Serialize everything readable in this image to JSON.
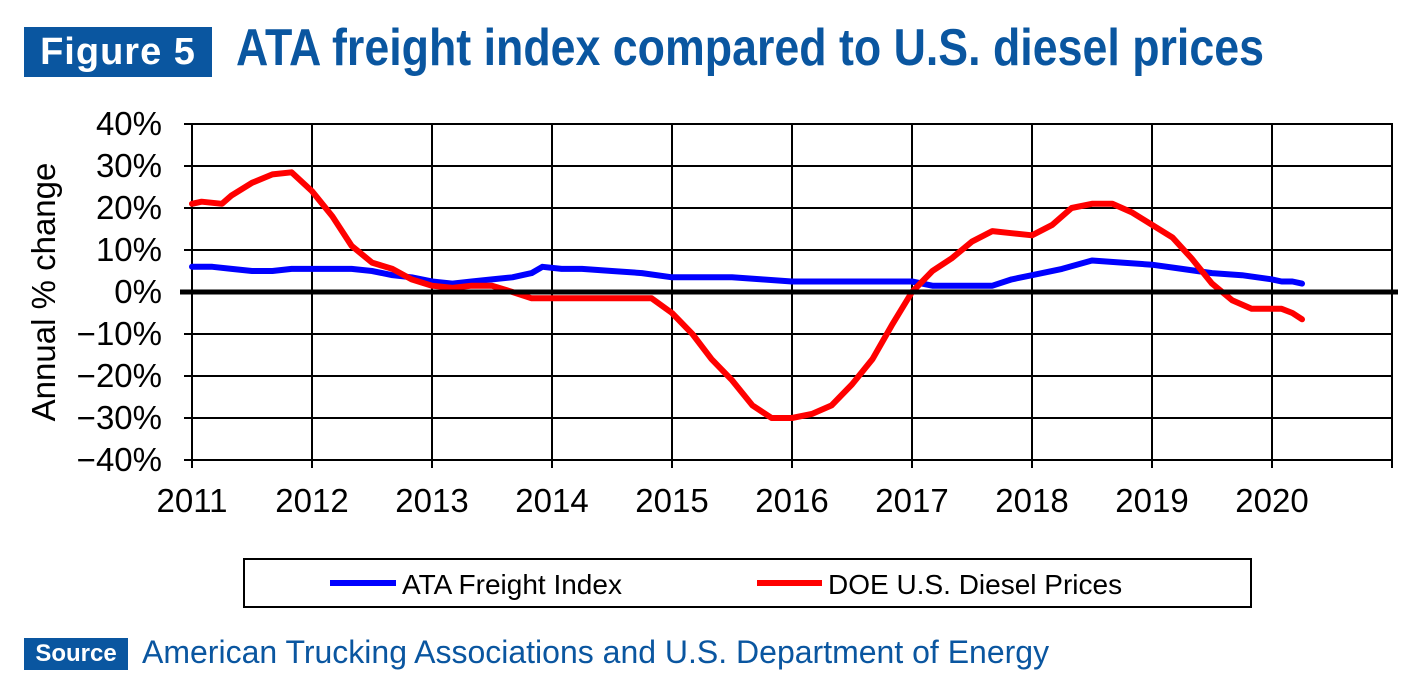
{
  "figure_label": "Figure 5",
  "title": "ATA freight index compared to U.S. diesel prices",
  "source_label": "Source",
  "source_text": "American Trucking Associations and U.S. Department of Energy",
  "colors": {
    "brand": "#0a56a0",
    "freight": "#0000ff",
    "diesel": "#ff0000"
  },
  "chart_data": {
    "type": "line",
    "ylabel": "Annual % change",
    "ylim": [
      -40,
      40
    ],
    "yticks": [
      -40,
      -30,
      -20,
      -10,
      0,
      10,
      20,
      30,
      40
    ],
    "ytick_labels": [
      "−40%",
      "−30%",
      "−20%",
      "−10%",
      "0%",
      "10%",
      "20%",
      "30%",
      "40%"
    ],
    "xlim": [
      2011,
      2021
    ],
    "xticks": [
      2011,
      2012,
      2013,
      2014,
      2015,
      2016,
      2017,
      2018,
      2019,
      2020
    ],
    "xtick_labels": [
      "2011",
      "2012",
      "2013",
      "2014",
      "2015",
      "2016",
      "2017",
      "2018",
      "2019",
      "2020"
    ],
    "grid": true,
    "legend_position": "bottom",
    "series": [
      {
        "name": "ATA Freight Index",
        "color": "#0000ff",
        "x": [
          2011,
          2011.17,
          2011.33,
          2011.5,
          2011.67,
          2011.83,
          2012,
          2012.17,
          2012.33,
          2012.5,
          2012.67,
          2012.83,
          2013,
          2013.17,
          2013.33,
          2013.5,
          2013.67,
          2013.83,
          2013.92,
          2014.08,
          2014.25,
          2014.5,
          2014.75,
          2015,
          2015.25,
          2015.5,
          2015.75,
          2016,
          2016.25,
          2016.5,
          2016.75,
          2017,
          2017.17,
          2017.33,
          2017.5,
          2017.67,
          2017.83,
          2018,
          2018.25,
          2018.5,
          2018.75,
          2019,
          2019.25,
          2019.5,
          2019.75,
          2020,
          2020.08,
          2020.17,
          2020.25
        ],
        "y": [
          6,
          6,
          5.5,
          5,
          5,
          5.5,
          5.5,
          5.5,
          5.5,
          5,
          4,
          3.5,
          2.5,
          2,
          2.5,
          3,
          3.5,
          4.5,
          6,
          5.5,
          5.5,
          5,
          4.5,
          3.5,
          3.5,
          3.5,
          3,
          2.5,
          2.5,
          2.5,
          2.5,
          2.5,
          1.5,
          1.5,
          1.5,
          1.5,
          3,
          4,
          5.5,
          7.5,
          7,
          6.5,
          5.5,
          4.5,
          4,
          3,
          2.5,
          2.5,
          2
        ]
      },
      {
        "name": "DOE U.S. Diesel Prices",
        "color": "#ff0000",
        "x": [
          2011,
          2011.08,
          2011.25,
          2011.33,
          2011.5,
          2011.67,
          2011.83,
          2012,
          2012.17,
          2012.33,
          2012.5,
          2012.67,
          2012.83,
          2013,
          2013.17,
          2013.33,
          2013.5,
          2013.67,
          2013.83,
          2014,
          2014.17,
          2014.33,
          2014.5,
          2014.67,
          2014.83,
          2015,
          2015.17,
          2015.33,
          2015.5,
          2015.67,
          2015.83,
          2016,
          2016.17,
          2016.33,
          2016.5,
          2016.67,
          2016.83,
          2017,
          2017.17,
          2017.33,
          2017.5,
          2017.67,
          2017.83,
          2018,
          2018.17,
          2018.33,
          2018.5,
          2018.67,
          2018.83,
          2019,
          2019.17,
          2019.33,
          2019.5,
          2019.67,
          2019.83,
          2020,
          2020.08,
          2020.17,
          2020.25
        ],
        "y": [
          21,
          21.5,
          21,
          23,
          26,
          28,
          28.5,
          24,
          18,
          11,
          7,
          5.5,
          3,
          1.5,
          1,
          1.5,
          1.5,
          0,
          -1.5,
          -1.5,
          -1.5,
          -1.5,
          -1.5,
          -1.5,
          -1.5,
          -5,
          -10,
          -16,
          -21,
          -27,
          -30,
          -30,
          -29,
          -27,
          -22,
          -16,
          -8,
          0,
          5,
          8,
          12,
          14.5,
          14,
          13.5,
          16,
          20,
          21,
          21,
          19,
          16,
          13,
          8,
          2,
          -2,
          -4,
          -4,
          -4,
          -5,
          -6.5
        ]
      }
    ]
  }
}
